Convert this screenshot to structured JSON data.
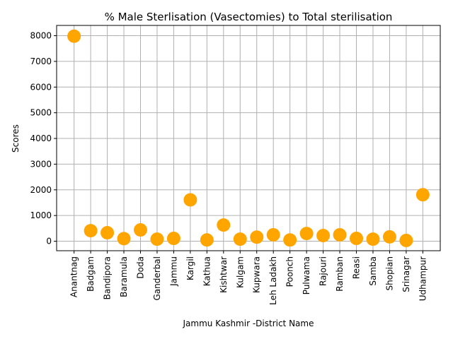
{
  "chart_data": {
    "type": "scatter",
    "title": "% Male Sterlisation (Vasectomies) to Total sterilisation",
    "xlabel": "Jammu Kashmir -District Name",
    "ylabel": "Scores",
    "categories": [
      "Anantnag",
      "Badgam",
      "Bandipora",
      "Baramula",
      "Doda",
      "Ganderbal",
      "Jammu",
      "Kargil",
      "Kathua",
      "Kishtwar",
      "Kulgam",
      "Kupwara",
      "Leh Ladakh",
      "Poonch",
      "Pulwama",
      "Rajouri",
      "Ramban",
      "Reasi",
      "Samba",
      "Shopian",
      "Srinagar",
      "Udhampur"
    ],
    "values": [
      7980,
      410,
      330,
      100,
      440,
      80,
      110,
      1610,
      50,
      630,
      80,
      160,
      250,
      50,
      300,
      220,
      250,
      110,
      80,
      170,
      30,
      1810
    ],
    "ylim": [
      -370,
      8400
    ],
    "yticks": [
      0,
      1000,
      2000,
      3000,
      4000,
      5000,
      6000,
      7000,
      8000
    ],
    "grid": true,
    "marker_color": "#ffa500"
  }
}
